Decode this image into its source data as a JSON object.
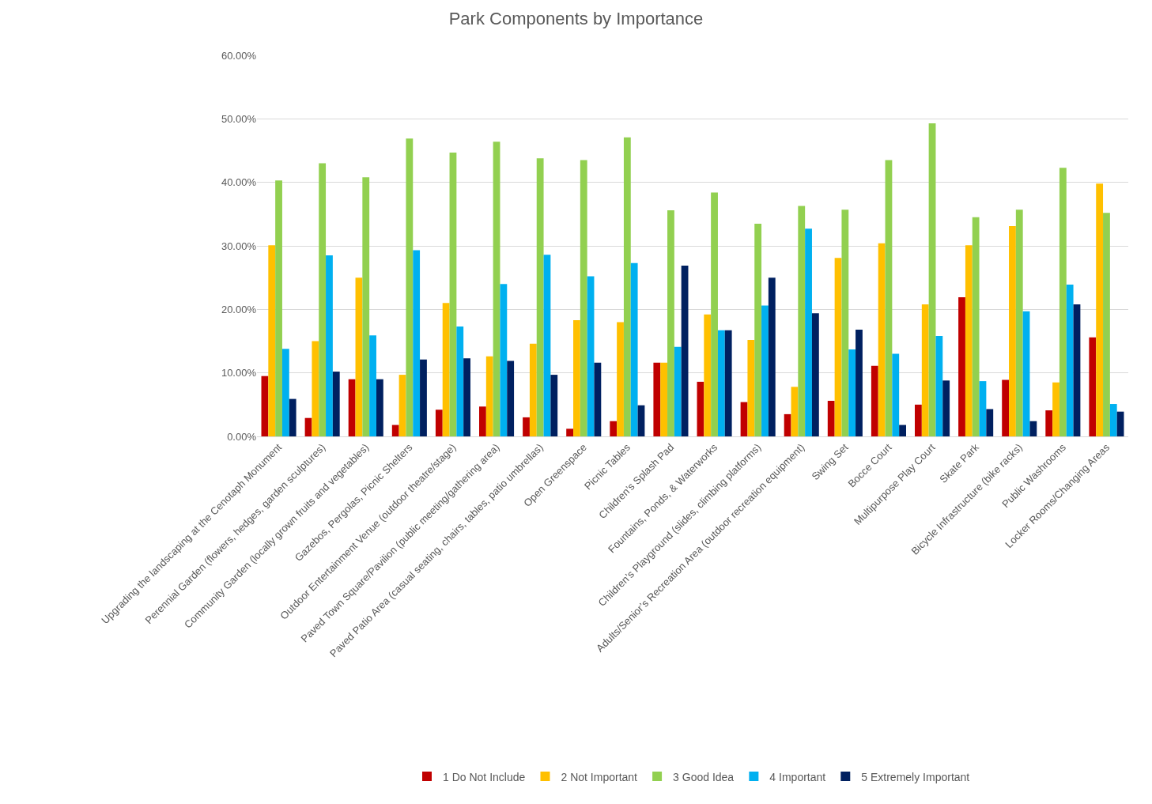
{
  "chart_data": {
    "type": "bar",
    "title": "Park Components by Importance",
    "categories": [
      "Upgrading the landscaping at the Cenotaph Monument",
      "Perennial Garden (flowers, hedges, garden sculptures)",
      "Community Garden (locally grown fruits and vegetables)",
      "Gazebos, Pergolas, Picnic Shelters",
      "Outdoor Entertainment Venue (outdoor theatre/stage)",
      "Paved Town Square/Pavilion (public meeting/gathering area)",
      "Paved Patio Area (casual seating, chairs, tables, patio umbrellas)",
      "Open Greenspace",
      "Picnic Tables",
      "Children’s Splash Pad",
      "Fountains, Ponds, & Waterworks",
      "Children’s Playground (slides, climbing platforms)",
      "Adults/Senior’s Recreation Area (outdoor recreation equipment)",
      "Swing Set",
      "Bocce Court",
      "Multipurpose Play Court",
      "Skate Park",
      "Bicycle Infrastructure (bike racks)",
      "Public Washrooms",
      "Locker Rooms/Changing Areas"
    ],
    "series": [
      {
        "name": "1 Do Not Include",
        "color": "#c00000",
        "values": [
          9.5,
          2.9,
          9.0,
          1.8,
          4.2,
          4.7,
          3.0,
          1.2,
          2.4,
          11.6,
          8.6,
          5.4,
          3.5,
          5.6,
          11.1,
          5.0,
          21.9,
          8.9,
          4.1,
          15.6
        ]
      },
      {
        "name": "2 Not Important",
        "color": "#ffc000",
        "values": [
          30.1,
          15.0,
          25.0,
          9.7,
          21.0,
          12.6,
          14.6,
          18.3,
          18.0,
          11.6,
          19.2,
          15.2,
          7.8,
          28.1,
          30.4,
          20.8,
          30.1,
          33.1,
          8.5,
          39.8
        ]
      },
      {
        "name": "3 Good Idea",
        "color": "#92d050",
        "values": [
          40.3,
          43.0,
          40.8,
          46.9,
          44.7,
          46.4,
          43.8,
          43.5,
          47.1,
          35.6,
          38.4,
          33.5,
          36.3,
          35.7,
          43.5,
          49.3,
          34.5,
          35.7,
          42.3,
          35.2
        ]
      },
      {
        "name": "4 Important",
        "color": "#00b0f0",
        "values": [
          13.8,
          28.5,
          15.9,
          29.3,
          17.3,
          24.0,
          28.6,
          25.2,
          27.3,
          14.1,
          16.7,
          20.6,
          32.7,
          13.7,
          13.0,
          15.8,
          8.7,
          19.7,
          23.9,
          5.1
        ]
      },
      {
        "name": "5 Extremely Important",
        "color": "#002060",
        "values": [
          5.9,
          10.2,
          9.0,
          12.1,
          12.3,
          11.9,
          9.7,
          11.6,
          4.9,
          26.9,
          16.7,
          25.0,
          19.4,
          16.8,
          1.8,
          8.8,
          4.3,
          2.4,
          20.8,
          3.9
        ]
      }
    ],
    "ylim": [
      0,
      60
    ],
    "yticks": [
      {
        "value": 0,
        "label": "0.00%"
      },
      {
        "value": 10,
        "label": "10.00%"
      },
      {
        "value": 20,
        "label": "20.00%"
      },
      {
        "value": 30,
        "label": "30.00%"
      },
      {
        "value": 40,
        "label": "40.00%"
      },
      {
        "value": 50,
        "label": "50.00%"
      },
      {
        "value": 60,
        "label": "60.00%"
      }
    ],
    "grid": "y",
    "legend": "bottom"
  }
}
